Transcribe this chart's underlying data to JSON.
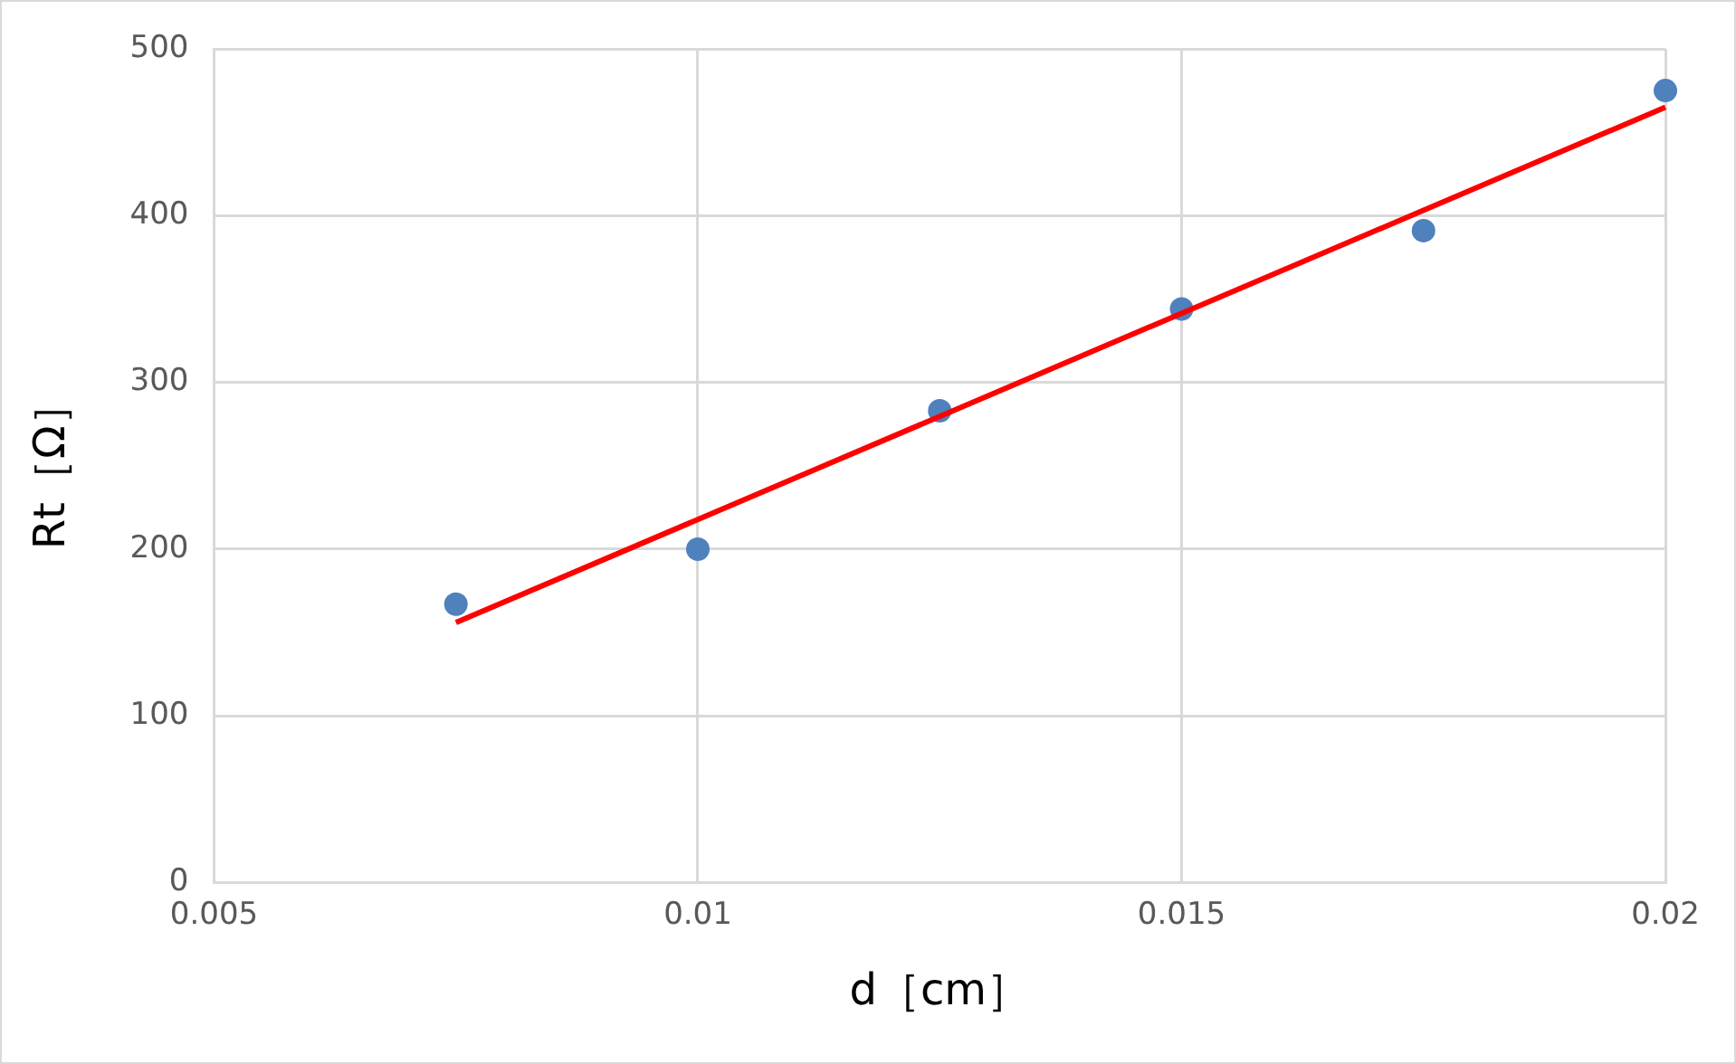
{
  "chart_data": {
    "type": "scatter",
    "xlabel": "d［cm］",
    "ylabel": "Rt［Ω］",
    "x": [
      0.0075,
      0.01,
      0.0125,
      0.015,
      0.0175,
      0.02
    ],
    "series": [
      {
        "type": "scatter",
        "color": "#4f81bd",
        "marker": "circle",
        "values": [
          167,
          200,
          283,
          344,
          391,
          475
        ]
      },
      {
        "type": "line",
        "color": "#ff0000",
        "marker": "none",
        "x": [
          0.0075,
          0.02
        ],
        "values": [
          156,
          465
        ]
      }
    ],
    "xlim": [
      0.005,
      0.02
    ],
    "xticks": [
      0.005,
      0.01,
      0.015,
      0.02
    ],
    "ylim": [
      0,
      500
    ],
    "yticks": [
      0,
      100,
      200,
      300,
      400,
      500
    ],
    "grid": true,
    "legend": false
  }
}
